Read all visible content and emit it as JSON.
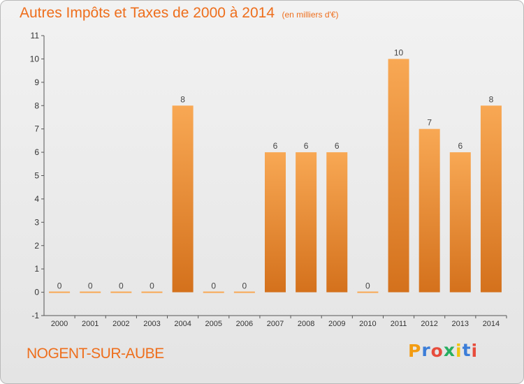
{
  "title": "Autres Impôts et Taxes de 2000 à 2014",
  "unit_label": "(en milliers d'€)",
  "commune": "NOGENT-SUR-AUBE",
  "logo": {
    "text": "Proxiti",
    "letter_colors": [
      "#f39c12",
      "#3b7dd8",
      "#e74c3c",
      "#27ae60",
      "#f1c40f",
      "#3b7dd8",
      "#e74c3c"
    ]
  },
  "colors": {
    "bar_top": "#f8a854",
    "bar_bottom": "#d4711c",
    "axis": "#555555",
    "grid": "#cfcfcf"
  },
  "chart_data": {
    "type": "bar",
    "categories": [
      "2000",
      "2001",
      "2002",
      "2003",
      "2004",
      "2005",
      "2006",
      "2007",
      "2008",
      "2009",
      "2010",
      "2011",
      "2012",
      "2013",
      "2014"
    ],
    "values": [
      0,
      0,
      0,
      0,
      8,
      0,
      0,
      6,
      6,
      6,
      0,
      10,
      7,
      6,
      8
    ],
    "data_labels": [
      "0",
      "0",
      "0",
      "0",
      "8",
      "0",
      "0",
      "6",
      "6",
      "6",
      "0",
      "10",
      "7",
      "6",
      "8"
    ],
    "ylim": [
      -1,
      11
    ],
    "y_ticks": [
      "-1",
      "0",
      "1",
      "2",
      "3",
      "4",
      "5",
      "6",
      "7",
      "8",
      "9",
      "10",
      "11"
    ],
    "grid": false,
    "title": "Autres Impôts et Taxes de 2000 à 2014",
    "xlabel": "",
    "ylabel": ""
  }
}
